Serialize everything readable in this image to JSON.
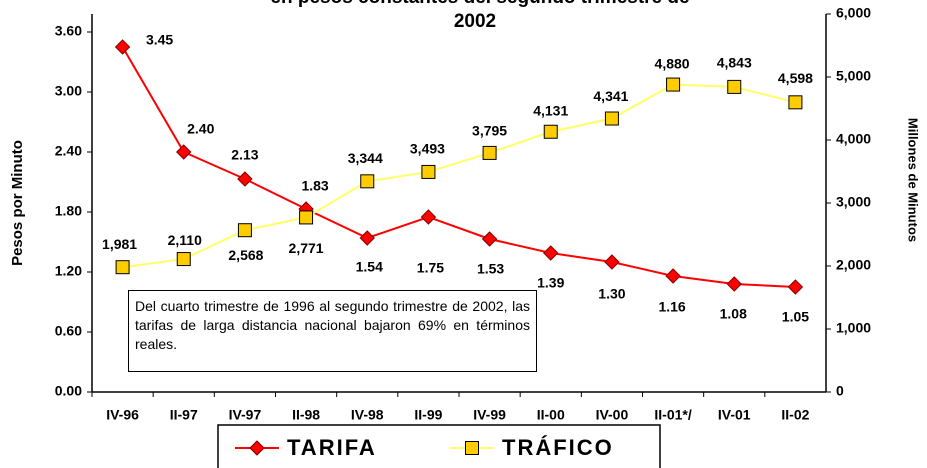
{
  "chart_data": {
    "type": "line",
    "title_lines": [
      "en pesos constantes del segundo trimestre de",
      "2002"
    ],
    "y_label": "Pesos por Minuto",
    "y2_label": "Millones de Minutos",
    "categories": [
      "IV-96",
      "II-97",
      "IV-97",
      "II-98",
      "IV-98",
      "II-99",
      "IV-99",
      "II-00",
      "IV-00",
      "II-01*/",
      "IV-01",
      "II-02"
    ],
    "series": [
      {
        "name": "TARIFA",
        "color": "#ff0000",
        "marker": "diamond",
        "marker_color": "#ff0000",
        "values": [
          3.45,
          2.4,
          2.13,
          1.83,
          1.54,
          1.75,
          1.53,
          1.39,
          1.3,
          1.16,
          1.08,
          1.05
        ],
        "value_labels": [
          "3.45",
          "2.40",
          "2.13",
          "1.83",
          "1.54",
          "1.75",
          "1.53",
          "1.39",
          "1.30",
          "1.16",
          "1.08",
          "1.05"
        ]
      },
      {
        "name": "TRÁFICO",
        "color": "#ffff66",
        "marker": "square",
        "marker_color": "#ffcc00",
        "axis": "y2",
        "values": [
          1981,
          2110,
          2568,
          2771,
          3344,
          3493,
          3795,
          4131,
          4341,
          4880,
          4843,
          4598
        ],
        "value_labels": [
          "1,981",
          "2,110",
          "2,568",
          "2,771",
          "3,344",
          "3,493",
          "3,795",
          "4,131",
          "4,341",
          "4,880",
          "4,843",
          "4,598"
        ]
      }
    ],
    "ylim": [
      0,
      3.78
    ],
    "yticks": [
      {
        "value": 0,
        "label": "0.00"
      },
      {
        "value": 0.6,
        "label": "0.60"
      },
      {
        "value": 1.2,
        "label": "1.20"
      },
      {
        "value": 1.8,
        "label": "1.80"
      },
      {
        "value": 2.4,
        "label": "2.40"
      },
      {
        "value": 3,
        "label": "3.00"
      },
      {
        "value": 3.6,
        "label": "3.60"
      }
    ],
    "y2lim": [
      0,
      6000
    ],
    "y2ticks": [
      0,
      {
        "value": 1000,
        "label": "1,000"
      },
      {
        "value": 2000,
        "label": "2,000"
      },
      {
        "value": 3000,
        "label": "3,000"
      },
      {
        "value": 4000,
        "label": "4,000"
      },
      {
        "value": 5000,
        "label": "5,000"
      },
      {
        "value": 6000,
        "label": "6,000"
      }
    ],
    "annotation": "Del cuarto trimestre de 1996 al segundo trimestre de 2002, las tarifas de larga distancia nacional bajaron 69% en términos reales.",
    "grid": false,
    "legend": "bottom"
  }
}
